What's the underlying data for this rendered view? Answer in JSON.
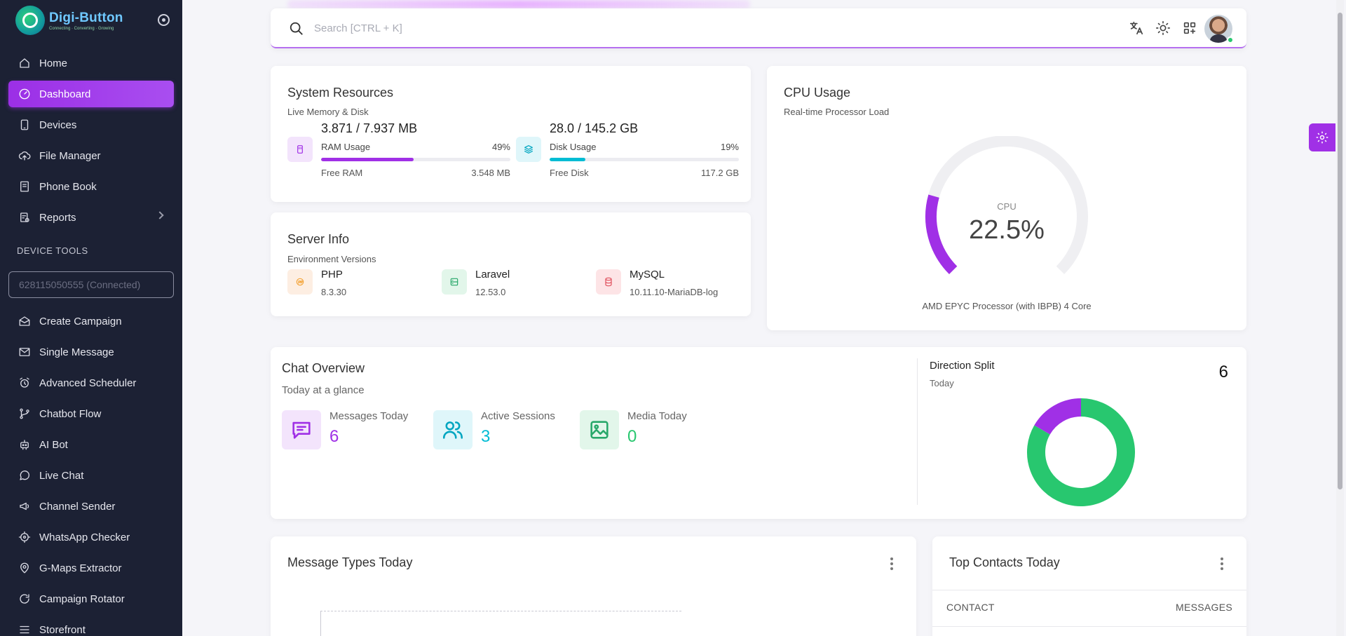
{
  "brand": {
    "name": "Digi-Button",
    "tagline": "Connecting · Converting · Growing"
  },
  "sidebar": {
    "items": [
      {
        "label": "Home",
        "icon": "home-icon"
      },
      {
        "label": "Dashboard",
        "icon": "dashboard-icon",
        "active": true
      },
      {
        "label": "Devices",
        "icon": "device-icon"
      },
      {
        "label": "File Manager",
        "icon": "cloud-upload-icon"
      },
      {
        "label": "Phone Book",
        "icon": "book-icon"
      },
      {
        "label": "Reports",
        "icon": "report-icon"
      }
    ],
    "section_title": "DEVICE TOOLS",
    "device_value": "628115050555 (Connected)",
    "tools": [
      {
        "label": "Create Campaign",
        "icon": "mail-open-icon"
      },
      {
        "label": "Single Message",
        "icon": "mail-icon"
      },
      {
        "label": "Advanced Scheduler",
        "icon": "alarm-icon"
      },
      {
        "label": "Chatbot Flow",
        "icon": "flow-icon"
      },
      {
        "label": "AI Bot",
        "icon": "robot-icon"
      },
      {
        "label": "Live Chat",
        "icon": "whatsapp-icon"
      },
      {
        "label": "Channel Sender",
        "icon": "megaphone-icon"
      },
      {
        "label": "WhatsApp Checker",
        "icon": "target-icon"
      },
      {
        "label": "G-Maps Extractor",
        "icon": "map-pin-icon"
      },
      {
        "label": "Campaign Rotator",
        "icon": "rotate-icon"
      },
      {
        "label": "Storefront",
        "icon": "menu-icon"
      }
    ]
  },
  "topbar": {
    "search_placeholder": "Search [CTRL + K]"
  },
  "system_resources": {
    "title": "System Resources",
    "subtitle": "Live Memory & Disk",
    "ram": {
      "value": "3.871 / 7.937 MB",
      "label": "RAM Usage",
      "percent_text": "49%",
      "percent": 49,
      "free_label": "Free RAM",
      "free_value": "3.548 MB",
      "color": "#a030e6"
    },
    "disk": {
      "value": "28.0 / 145.2 GB",
      "label": "Disk Usage",
      "percent_text": "19%",
      "percent": 19,
      "free_label": "Free Disk",
      "free_value": "117.2 GB",
      "color": "#00bcd4"
    }
  },
  "server_info": {
    "title": "Server Info",
    "subtitle": "Environment Versions",
    "items": [
      {
        "name": "PHP",
        "version": "8.3.30",
        "icon": "php-icon"
      },
      {
        "name": "Laravel",
        "version": "12.53.0",
        "icon": "server-icon"
      },
      {
        "name": "MySQL",
        "version": "10.11.10-MariaDB-log",
        "icon": "database-icon"
      }
    ]
  },
  "cpu": {
    "title": "CPU Usage",
    "subtitle": "Real-time Processor Load",
    "label": "CPU",
    "value_text": "22.5%",
    "value": 22.5,
    "processor": "AMD EPYC Processor (with IBPB) 4 Core",
    "color": "#a030e6"
  },
  "chat_overview": {
    "title": "Chat Overview",
    "subtitle": "Today at a glance",
    "stats": [
      {
        "label": "Messages Today",
        "value": "6",
        "color": "#a030e6",
        "icon": "message-icon"
      },
      {
        "label": "Active Sessions",
        "value": "3",
        "color": "#00bcd4",
        "icon": "users-icon"
      },
      {
        "label": "Media Today",
        "value": "0",
        "color": "#28c76f",
        "icon": "image-icon"
      }
    ]
  },
  "direction_split": {
    "title": "Direction Split",
    "subtitle": "Today",
    "total": "6",
    "chart_data": {
      "type": "pie",
      "values": [
        5,
        1
      ],
      "colors": [
        "#28c76f",
        "#a030e6"
      ]
    }
  },
  "message_types": {
    "title": "Message Types Today"
  },
  "top_contacts": {
    "title": "Top Contacts Today",
    "col_contact": "CONTACT",
    "col_messages": "MESSAGES"
  }
}
